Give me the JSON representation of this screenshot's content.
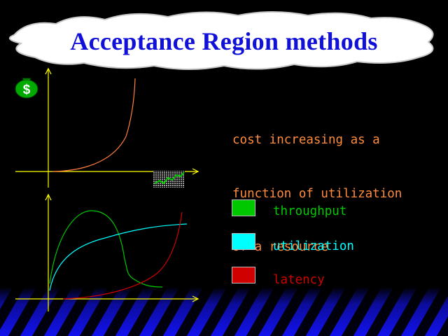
{
  "title": "Acceptance Region methods",
  "money_icon": {
    "icon": "money-bag-icon",
    "symbol": "$",
    "color": "#00aa00"
  },
  "chart_icon": {
    "icon": "rising-chart-icon"
  },
  "description": {
    "lines": [
      "cost increasing as a",
      "function of utilization",
      "of a resource"
    ],
    "color": "#ff8c3c"
  },
  "legend": [
    {
      "label": "throughput",
      "color": "#00c800",
      "text_color": "#00c800"
    },
    {
      "label": "utilization",
      "color": "#00ffff",
      "text_color": "#00ffff"
    },
    {
      "label": "latency",
      "color": "#d00000",
      "text_color": "#d00000"
    }
  ],
  "colors": {
    "axis": "#ffff00",
    "cost_curve": "#ff8040",
    "floor_stripe_a": "#1010ff",
    "floor_stripe_b": "#000018"
  }
}
